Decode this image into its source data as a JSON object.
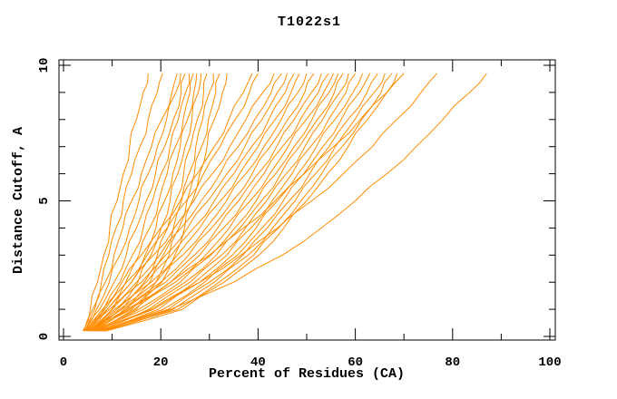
{
  "chart_data": {
    "type": "line",
    "title": "T1022s1",
    "xlabel": "Percent of Residues (CA)",
    "ylabel": "Distance Cutoff, A",
    "xlim": [
      0,
      100
    ],
    "ylim": [
      0,
      10
    ],
    "x_major_ticks": [
      0,
      20,
      40,
      60,
      80,
      100
    ],
    "x_minor_tick_step": 10,
    "y_major_ticks": [
      0,
      5,
      10
    ],
    "y_minor_tick_step": 1,
    "grid": false,
    "legend": false,
    "tick_style": "inward-mirrored",
    "line_color": "#FF8C00",
    "axis_color": "#000000",
    "background_color": "#FFFFFF",
    "curve_y_levels": [
      0.2,
      1,
      2,
      3,
      4,
      5,
      6,
      7,
      8,
      9,
      9.7
    ],
    "curves": [
      [
        4.0,
        5.5,
        7.0,
        8.3,
        9.5,
        11.0,
        12.3,
        13.6,
        15.0,
        16.4,
        17.4
      ],
      [
        4.2,
        6.0,
        7.8,
        9.3,
        10.8,
        12.3,
        14.0,
        15.7,
        17.4,
        19.3,
        20.4
      ],
      [
        4.4,
        6.4,
        8.6,
        10.4,
        12.2,
        14.0,
        16.0,
        18.1,
        20.2,
        22.3,
        23.4
      ],
      [
        4.3,
        6.8,
        9.4,
        11.6,
        13.6,
        15.5,
        17.4,
        19.3,
        21.2,
        23.1,
        24.1
      ],
      [
        4.6,
        7.4,
        10.4,
        12.9,
        15.0,
        17.0,
        18.9,
        20.8,
        22.6,
        24.2,
        25.0
      ],
      [
        4.8,
        8.2,
        11.6,
        14.2,
        16.4,
        18.3,
        20.1,
        21.9,
        23.6,
        25.1,
        25.8
      ],
      [
        5.0,
        9.0,
        12.8,
        15.5,
        17.7,
        19.6,
        21.3,
        23.0,
        24.6,
        26.0,
        26.7
      ],
      [
        5.2,
        10.0,
        14.0,
        16.8,
        19.0,
        20.8,
        22.5,
        24.0,
        25.5,
        26.8,
        27.4
      ],
      [
        5.4,
        11.0,
        15.3,
        18.0,
        20.1,
        21.9,
        23.5,
        25.0,
        26.4,
        27.7,
        28.3
      ],
      [
        5.6,
        12.0,
        16.6,
        19.3,
        21.4,
        23.1,
        24.7,
        26.1,
        27.5,
        28.8,
        29.5
      ],
      [
        5.8,
        13.0,
        17.8,
        20.5,
        22.6,
        24.3,
        25.8,
        27.2,
        28.6,
        30.0,
        30.8
      ],
      [
        6.0,
        14.0,
        19.0,
        21.7,
        23.7,
        25.4,
        26.9,
        28.4,
        29.8,
        31.3,
        32.1
      ],
      [
        6.2,
        15.0,
        20.2,
        22.9,
        24.9,
        26.5,
        28.0,
        29.5,
        31.0,
        32.7,
        33.6
      ],
      [
        4.5,
        8.0,
        12.0,
        16.0,
        20.0,
        24.0,
        27.5,
        31.0,
        34.0,
        37.0,
        38.8
      ],
      [
        4.7,
        8.5,
        13.0,
        17.2,
        21.3,
        25.2,
        28.8,
        32.2,
        35.3,
        38.2,
        40.0
      ],
      [
        4.9,
        9.0,
        14.0,
        18.5,
        22.8,
        26.8,
        30.6,
        34.2,
        37.5,
        41.0,
        43.3
      ],
      [
        5.1,
        9.5,
        15.0,
        19.8,
        24.2,
        28.3,
        32.2,
        35.9,
        39.3,
        42.7,
        44.9
      ],
      [
        5.3,
        10.0,
        16.0,
        21.0,
        25.5,
        29.7,
        33.6,
        37.3,
        40.8,
        44.0,
        46.0
      ],
      [
        5.5,
        10.5,
        17.0,
        22.2,
        26.8,
        31.0,
        35.0,
        38.7,
        42.2,
        45.6,
        47.4
      ],
      [
        5.7,
        11.0,
        18.0,
        23.4,
        28.0,
        32.3,
        36.2,
        40.0,
        43.5,
        46.8,
        48.5
      ],
      [
        5.9,
        11.5,
        19.0,
        24.5,
        29.3,
        33.5,
        37.5,
        41.2,
        44.8,
        48.2,
        50.0
      ],
      [
        6.1,
        12.0,
        20.0,
        25.7,
        30.5,
        34.8,
        38.8,
        42.5,
        46.1,
        49.6,
        51.5
      ],
      [
        6.3,
        12.5,
        21.0,
        26.9,
        31.7,
        36.0,
        40.0,
        43.8,
        47.4,
        51.0,
        53.0
      ],
      [
        6.5,
        13.5,
        22.0,
        28.0,
        32.9,
        37.2,
        41.2,
        45.0,
        48.7,
        52.4,
        54.5
      ],
      [
        6.7,
        14.5,
        23.0,
        29.2,
        34.1,
        38.4,
        42.4,
        46.2,
        49.9,
        53.5,
        55.5
      ],
      [
        6.9,
        15.5,
        24.0,
        30.3,
        35.2,
        39.6,
        43.6,
        47.4,
        51.1,
        54.6,
        56.5
      ],
      [
        7.1,
        16.5,
        25.0,
        31.4,
        36.3,
        40.7,
        44.7,
        48.5,
        52.2,
        55.7,
        57.5
      ],
      [
        7.3,
        17.5,
        26.0,
        32.5,
        37.4,
        41.8,
        45.8,
        49.6,
        53.3,
        56.8,
        58.6
      ],
      [
        7.5,
        18.5,
        27.0,
        33.6,
        38.5,
        42.9,
        47.0,
        50.8,
        54.5,
        58.1,
        60.0
      ],
      [
        7.7,
        19.5,
        28.0,
        34.7,
        39.6,
        44.0,
        48.2,
        52.0,
        55.8,
        59.5,
        61.5
      ],
      [
        7.9,
        20.5,
        29.0,
        35.8,
        40.8,
        45.2,
        49.4,
        53.3,
        57.1,
        60.9,
        63.0
      ],
      [
        8.1,
        21.5,
        30.0,
        36.9,
        41.9,
        46.4,
        50.6,
        54.6,
        58.5,
        62.4,
        64.6
      ],
      [
        8.3,
        22.5,
        31.0,
        38.0,
        43.0,
        47.6,
        51.8,
        55.9,
        59.9,
        63.9,
        66.1
      ],
      [
        8.5,
        23.5,
        32.0,
        39.1,
        44.2,
        48.8,
        53.1,
        57.3,
        61.3,
        65.3,
        67.5
      ],
      [
        8.7,
        24.5,
        33.0,
        40.2,
        45.3,
        50.0,
        54.3,
        58.5,
        62.5,
        66.5,
        68.6
      ],
      [
        5.5,
        13.0,
        22.0,
        30.0,
        37.0,
        43.5,
        49.5,
        55.5,
        61.0,
        66.5,
        70.0
      ],
      [
        6.5,
        18.0,
        28.0,
        36.5,
        44.0,
        51.0,
        57.5,
        63.5,
        68.5,
        73.5,
        76.8
      ],
      [
        7.0,
        22.0,
        35.0,
        45.0,
        53.0,
        60.0,
        66.5,
        72.5,
        78.0,
        83.5,
        87.0
      ]
    ]
  }
}
